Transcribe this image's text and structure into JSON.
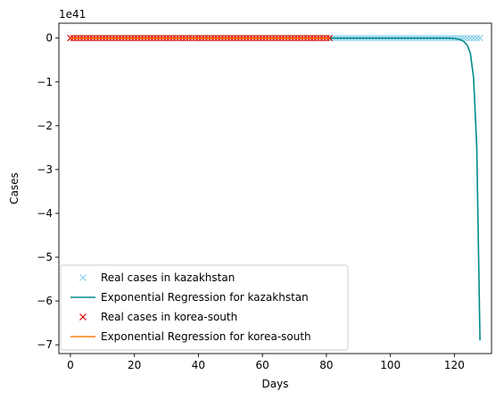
{
  "chart_data": {
    "type": "line",
    "title": "",
    "xlabel": "Days",
    "ylabel": "Cases",
    "offset_label": "1e41",
    "xlim": [
      -3.6,
      131.6
    ],
    "ylim": [
      -7.2,
      0.34
    ],
    "xticks": [
      0,
      20,
      40,
      60,
      80,
      100,
      120
    ],
    "xtick_labels": [
      "0",
      "20",
      "40",
      "60",
      "80",
      "100",
      "120"
    ],
    "yticks": [
      0,
      -1,
      -2,
      -3,
      -4,
      -5,
      -6,
      -7
    ],
    "ytick_labels": [
      "0",
      "−1",
      "−2",
      "−3",
      "−4",
      "−5",
      "−6",
      "−7"
    ],
    "grid": false,
    "legend_position": "lower-left",
    "series": [
      {
        "name": "Real cases in kazakhstan",
        "kind": "scatter",
        "marker": "x",
        "color": "#87ceeb",
        "x_start": 0,
        "x_end": 128,
        "value": 0
      },
      {
        "name": "Exponential Regression for kazakhstan",
        "kind": "line",
        "color": "#008b8b",
        "points": [
          [
            0,
            0
          ],
          [
            110,
            0
          ],
          [
            118,
            0
          ],
          [
            120,
            -0.01
          ],
          [
            121,
            -0.02
          ],
          [
            122,
            -0.04
          ],
          [
            123,
            -0.08
          ],
          [
            124,
            -0.16
          ],
          [
            125,
            -0.35
          ],
          [
            126,
            -0.9
          ],
          [
            127,
            -2.5
          ],
          [
            128,
            -6.9
          ]
        ]
      },
      {
        "name": "Real cases in korea-south",
        "kind": "scatter",
        "marker": "x",
        "color": "#dd0000",
        "x_start": 0,
        "x_end": 81,
        "value": 0
      },
      {
        "name": "Exponential Regression for korea-south",
        "kind": "line",
        "color": "#ff7f0e",
        "points": [
          [
            0,
            0
          ],
          [
            81,
            0
          ]
        ]
      }
    ]
  }
}
